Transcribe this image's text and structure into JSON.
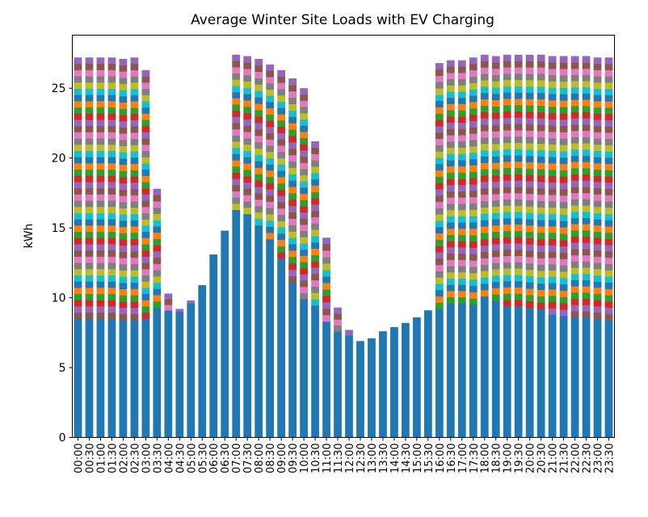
{
  "chart_data": {
    "type": "bar",
    "stacked": true,
    "title": "Average Winter Site Loads with EV Charging",
    "xlabel": "",
    "ylabel": "kWh",
    "ylim": [
      0,
      28.8
    ],
    "yticks": [
      0,
      5,
      10,
      15,
      20,
      25
    ],
    "grid": false,
    "categories": [
      "00:00",
      "00:30",
      "01:00",
      "01:30",
      "02:00",
      "02:30",
      "03:00",
      "03:30",
      "04:00",
      "04:30",
      "05:00",
      "05:30",
      "06:00",
      "06:30",
      "07:00",
      "07:30",
      "08:00",
      "08:30",
      "09:00",
      "09:30",
      "10:00",
      "10:30",
      "11:00",
      "11:30",
      "12:00",
      "12:30",
      "13:00",
      "13:30",
      "14:00",
      "14:30",
      "15:00",
      "15:30",
      "16:00",
      "16:30",
      "17:00",
      "17:30",
      "18:00",
      "18:30",
      "19:00",
      "19:30",
      "20:00",
      "20:30",
      "21:00",
      "21:30",
      "22:00",
      "22:30",
      "23:00",
      "23:30"
    ],
    "series": [
      {
        "role": "site load",
        "color": "#1f77b4",
        "values": [
          8.5,
          8.5,
          8.5,
          8.5,
          8.4,
          8.4,
          8.5,
          9.3,
          9.1,
          9.0,
          9.6,
          10.9,
          13.1,
          14.8,
          16.3,
          16.0,
          15.2,
          14.2,
          12.8,
          11.1,
          9.9,
          9.0,
          8.3,
          7.6,
          7.3,
          6.9,
          7.1,
          7.6,
          7.9,
          8.2,
          8.6,
          9.1,
          9.2,
          9.6,
          9.6,
          9.5,
          10.1,
          9.8,
          9.4,
          9.4,
          9.3,
          9.2,
          8.8,
          8.7,
          8.6,
          8.6,
          8.5,
          8.4
        ]
      },
      {
        "role": "EV charging (stacked vehicles)",
        "totals": [
          27.2,
          27.2,
          27.2,
          27.2,
          27.1,
          27.2,
          26.3,
          17.8,
          10.3,
          9.2,
          9.8,
          10.9,
          13.1,
          14.8,
          27.4,
          27.3,
          27.1,
          26.7,
          26.3,
          25.7,
          25.0,
          21.2,
          14.3,
          9.3,
          7.7,
          6.9,
          7.1,
          7.6,
          7.9,
          8.2,
          8.6,
          9.1,
          26.8,
          27.0,
          27.0,
          27.2,
          27.4,
          27.3,
          27.4,
          27.4,
          27.4,
          27.4,
          27.3,
          27.3,
          27.3,
          27.3,
          27.2,
          27.2
        ]
      }
    ],
    "stack_colors": [
      "#ff7f0e",
      "#2ca02c",
      "#d62728",
      "#9467bd",
      "#8c564b",
      "#e377c2",
      "#7f7f7f",
      "#bcbd22",
      "#17becf",
      "#1f77b4"
    ],
    "axis_color": "#000000"
  }
}
